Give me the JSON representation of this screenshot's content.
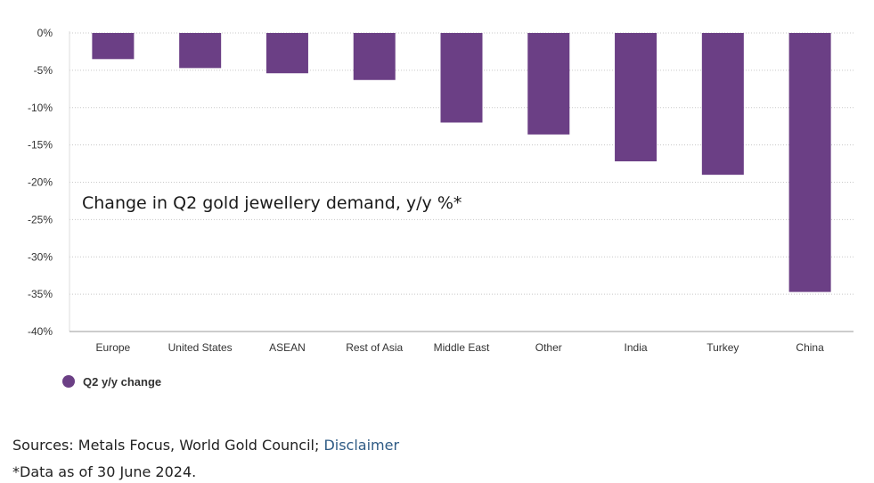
{
  "chart_data": {
    "type": "bar",
    "title": "Change in Q2 gold jewellery demand, y/y %*",
    "categories": [
      "Europe",
      "United States",
      "ASEAN",
      "Rest of Asia",
      "Middle East",
      "Other",
      "India",
      "Turkey",
      "China"
    ],
    "series": [
      {
        "name": "Q2 y/y change",
        "values": [
          -3.5,
          -4.7,
          -5.4,
          -6.3,
          -12.0,
          -13.6,
          -17.2,
          -19.0,
          -34.7
        ]
      }
    ],
    "ylim": [
      -40,
      0
    ],
    "yticks": [
      0,
      -5,
      -10,
      -15,
      -20,
      -25,
      -30,
      -35,
      -40
    ],
    "ytick_labels": [
      "0%",
      "-5%",
      "-10%",
      "-15%",
      "-20%",
      "-25%",
      "-30%",
      "-35%",
      "-40%"
    ],
    "xlabel": "",
    "ylabel": "",
    "grid": true,
    "legend_position": "bottom-left",
    "colors": {
      "bar": "#6b3f85",
      "grid": "#c8c8c8",
      "axis": "#999999"
    }
  },
  "footer": {
    "sources_prefix": "Sources: Metals Focus, World Gold Council; ",
    "disclaimer_link": "Disclaimer",
    "note": "*Data as of 30 June 2024."
  }
}
